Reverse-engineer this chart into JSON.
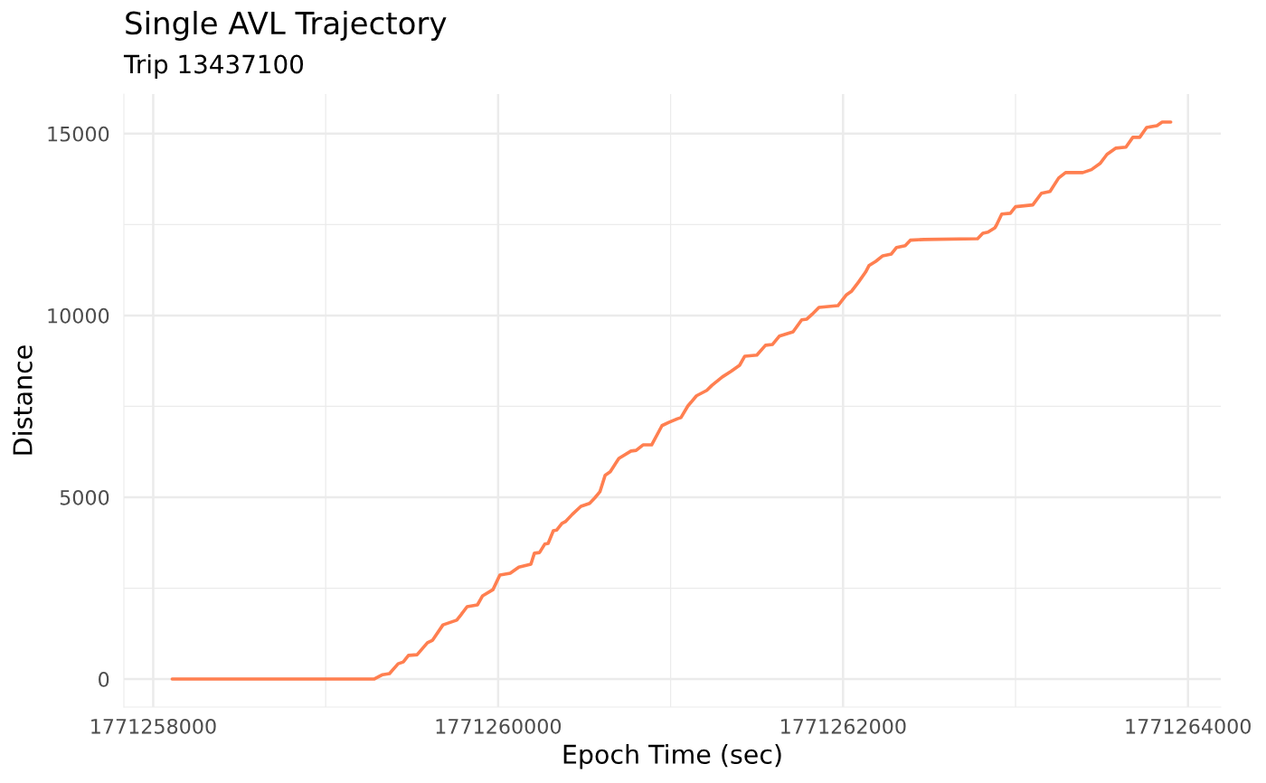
{
  "chart_data": {
    "type": "line",
    "title": "Single AVL Trajectory",
    "subtitle": "Trip 13437100",
    "xlabel": "Epoch Time (sec)",
    "ylabel": "Distance",
    "x": [
      1771258110,
      1771259280,
      1771259330,
      1771259370,
      1771259420,
      1771259450,
      1771259480,
      1771259530,
      1771259590,
      1771259620,
      1771259680,
      1771259760,
      1771259780,
      1771259820,
      1771259880,
      1771259910,
      1771259970,
      1771260010,
      1771260070,
      1771260120,
      1771260190,
      1771260210,
      1771260240,
      1771260270,
      1771260290,
      1771260320,
      1771260340,
      1771260370,
      1771260390,
      1771260430,
      1771260480,
      1771260530,
      1771260560,
      1771260590,
      1771260620,
      1771260650,
      1771260700,
      1771260770,
      1771260800,
      1771260840,
      1771260890,
      1771260950,
      1771260990,
      1771261040,
      1771261060,
      1771261100,
      1771261150,
      1771261210,
      1771261240,
      1771261300,
      1771261350,
      1771261400,
      1771261430,
      1771261500,
      1771261550,
      1771261590,
      1771261630,
      1771261710,
      1771261760,
      1771261790,
      1771261820,
      1771261860,
      1771261970,
      1771262020,
      1771262050,
      1771262090,
      1771262130,
      1771262150,
      1771262190,
      1771262230,
      1771262280,
      1771262310,
      1771262360,
      1771262390,
      1771262470,
      1771262780,
      1771262810,
      1771262840,
      1771262880,
      1771262890,
      1771262920,
      1771262970,
      1771263000,
      1771263100,
      1771263150,
      1771263200,
      1771263250,
      1771263290,
      1771263390,
      1771263440,
      1771263490,
      1771263530,
      1771263580,
      1771263640,
      1771263680,
      1771263720,
      1771263760,
      1771263820,
      1771263850,
      1771263900
    ],
    "series": [
      {
        "color": "#ff7f50",
        "values": [
          0,
          0,
          120,
          150,
          420,
          470,
          650,
          670,
          1000,
          1070,
          1490,
          1620,
          1740,
          1990,
          2040,
          2290,
          2460,
          2860,
          2910,
          3080,
          3160,
          3460,
          3480,
          3710,
          3730,
          4080,
          4100,
          4280,
          4330,
          4530,
          4750,
          4830,
          4980,
          5150,
          5600,
          5700,
          6070,
          6270,
          6290,
          6440,
          6440,
          6970,
          7060,
          7160,
          7190,
          7510,
          7790,
          7940,
          8080,
          8310,
          8460,
          8630,
          8880,
          8910,
          9180,
          9200,
          9430,
          9550,
          9880,
          9900,
          10030,
          10220,
          10270,
          10570,
          10670,
          10920,
          11190,
          11370,
          11490,
          11640,
          11690,
          11870,
          11920,
          12070,
          12090,
          12110,
          12260,
          12290,
          12410,
          12490,
          12790,
          12810,
          12990,
          13040,
          13360,
          13410,
          13780,
          13930,
          13930,
          14010,
          14180,
          14430,
          14600,
          14630,
          14900,
          14900,
          15170,
          15220,
          15320,
          15320
        ]
      }
    ],
    "xlim": [
      1771257830,
      1771264190
    ],
    "ylim": [
      -770,
      16090
    ],
    "xticks": [
      1771258000,
      {
        "value": 1771259000,
        "label": null
      },
      1771260000,
      {
        "value": 1771261000,
        "label": null
      },
      1771262000,
      {
        "value": 1771263000,
        "label": null
      },
      1771264000
    ],
    "yticks": [
      0,
      {
        "value": 2500,
        "label": null
      },
      5000,
      {
        "value": 7500,
        "label": null
      },
      10000,
      {
        "value": 12500,
        "label": null
      },
      15000
    ],
    "grid": true,
    "line_style": "solid"
  }
}
